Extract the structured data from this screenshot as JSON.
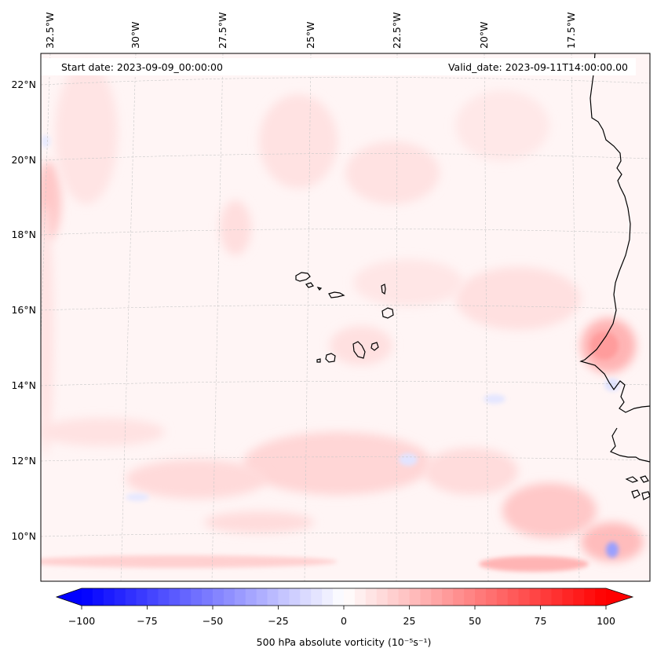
{
  "map": {
    "start_date": "Start date: 2023-09-09_00:00:00",
    "valid_date": "Valid_date: 2023-09-11T14:00:00.00",
    "lat_labels": [
      "22°N",
      "20°N",
      "18°N",
      "16°N",
      "14°N",
      "12°N",
      "10°N"
    ],
    "lon_labels": [
      "32.5°W",
      "30°W",
      "27.5°W",
      "25°W",
      "22.5°W",
      "20°W",
      "17.5°W"
    ],
    "variable": "500 hPa absolute vorticity",
    "units": "(10⁻⁵s⁻¹)",
    "colors": {
      "negative": "#0000ff",
      "neutral": "#ffffff",
      "positive": "#ff0000",
      "coast": "#000000",
      "grid": "#bbbbbb"
    }
  },
  "colorbar": {
    "ticks": [
      "−100",
      "−75",
      "−50",
      "−25",
      "0",
      "25",
      "50",
      "75",
      "100"
    ],
    "min": -100,
    "max": 100,
    "levels": 48
  }
}
